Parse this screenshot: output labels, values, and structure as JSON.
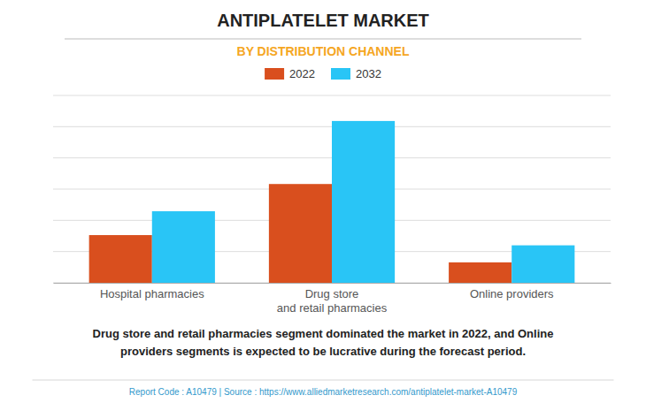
{
  "chart_data": {
    "type": "bar",
    "title": "ANTIPLATELET MARKET",
    "subtitle": "BY DISTRIBUTION CHANNEL",
    "categories": [
      "Hospital pharmacies",
      "Drug store\nand retail pharmacies",
      "Online providers"
    ],
    "series": [
      {
        "name": "2022",
        "color": "#d94f1e",
        "values": [
          2.8,
          5.8,
          1.2
        ]
      },
      {
        "name": "2032",
        "color": "#29c5f6",
        "values": [
          4.2,
          9.5,
          2.2
        ]
      }
    ],
    "ylim": [
      0,
      11
    ],
    "yticks": [
      0,
      1.8333333333333333,
      3.6666666666666665,
      5.5,
      7.333333333333333,
      9.166666666666666,
      11
    ],
    "grid": true,
    "tick_labels": "x",
    "legend": "top",
    "annotations": [
      "Drug store and retail pharmacies segment dominated the market in 2022, and Online\nproviders segments is expected to be lucrative during the forecast period.",
      "Report Code : A10479  |  Source : https://www.alliedmarketresearch.com/antiplatelet-market-A10479"
    ]
  }
}
